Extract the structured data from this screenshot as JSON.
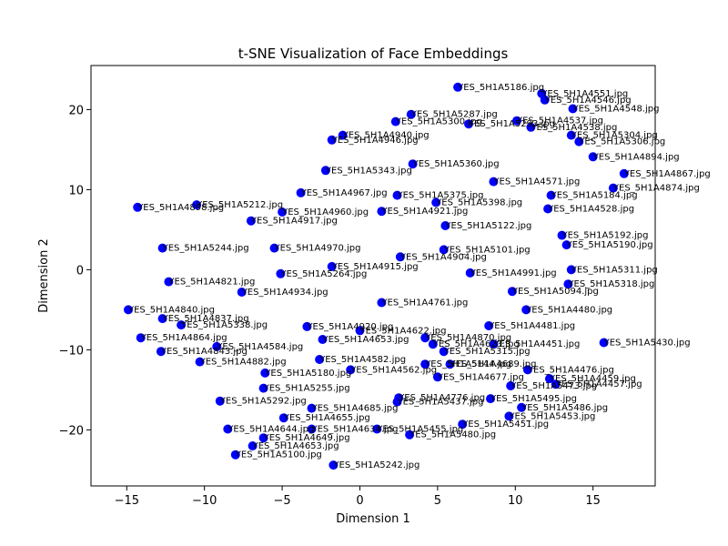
{
  "chart_data": {
    "type": "scatter",
    "title": "t-SNE Visualization of Face Embeddings",
    "xlabel": "Dimension 1",
    "ylabel": "Dimension 2",
    "xlim": [
      -17.3,
      19.0
    ],
    "ylim": [
      -27.0,
      25.5
    ],
    "xticks": [
      -15,
      -10,
      -5,
      0,
      5,
      10,
      15
    ],
    "yticks": [
      -20,
      -10,
      0,
      10,
      20
    ],
    "xtick_labels": [
      "−15",
      "−10",
      "−5",
      "0",
      "5",
      "10",
      "15"
    ],
    "ytick_labels": [
      "−20",
      "−10",
      "0",
      "10",
      "20"
    ],
    "grid": false,
    "point_color": "#0000ff",
    "points": [
      {
        "x": 6.3,
        "y": 22.8,
        "label": "YES_5H1A5186.jpg"
      },
      {
        "x": 11.7,
        "y": 22.0,
        "label": "YES_5H1A4551.jpg"
      },
      {
        "x": 11.9,
        "y": 21.2,
        "label": "YES_5H1A4546.jpg"
      },
      {
        "x": 13.7,
        "y": 20.1,
        "label": "YES_5H1A4548.jpg"
      },
      {
        "x": 3.3,
        "y": 19.4,
        "label": "YES_5H1A5287.jpg"
      },
      {
        "x": 2.3,
        "y": 18.5,
        "label": "YES_5H1A5300.jpg"
      },
      {
        "x": 10.1,
        "y": 18.6,
        "label": "YES_5H1A4537.jpg"
      },
      {
        "x": 7.0,
        "y": 18.2,
        "label": "YES_5H1A5293.jpg"
      },
      {
        "x": 11.0,
        "y": 17.8,
        "label": "YES_5H1A4538.jpg"
      },
      {
        "x": -1.1,
        "y": 16.8,
        "label": "YES_5H1A4940.jpg"
      },
      {
        "x": -1.8,
        "y": 16.2,
        "label": "YES_5H1A4946.jpg"
      },
      {
        "x": 14.1,
        "y": 16.0,
        "label": "YES_5H1A5306.jpg"
      },
      {
        "x": 13.6,
        "y": 16.8,
        "label": "YES_5H1A5304.jpg"
      },
      {
        "x": 3.4,
        "y": 13.2,
        "label": "YES_5H1A5360.jpg"
      },
      {
        "x": 15.0,
        "y": 14.1,
        "label": "YES_5H1A4894.jpg"
      },
      {
        "x": 17.0,
        "y": 12.0,
        "label": "YES_5H1A4867.jpg"
      },
      {
        "x": 16.3,
        "y": 10.2,
        "label": "YES_5H1A4874.jpg"
      },
      {
        "x": -2.2,
        "y": 12.4,
        "label": "YES_5H1A5343.jpg"
      },
      {
        "x": 8.6,
        "y": 11.0,
        "label": "YES_5H1A4571.jpg"
      },
      {
        "x": -3.8,
        "y": 9.6,
        "label": "YES_5H1A4967.jpg"
      },
      {
        "x": 2.4,
        "y": 9.3,
        "label": "YES_5H1A5375.jpg"
      },
      {
        "x": 12.3,
        "y": 9.3,
        "label": "YES_5H1A5184.jpg"
      },
      {
        "x": 4.9,
        "y": 8.4,
        "label": "YES_5H1A5398.jpg"
      },
      {
        "x": -5.0,
        "y": 7.2,
        "label": "YES_5H1A4960.jpg"
      },
      {
        "x": 1.4,
        "y": 7.3,
        "label": "YES_5H1A4921.jpg"
      },
      {
        "x": 12.1,
        "y": 7.6,
        "label": "YES_5H1A4528.jpg"
      },
      {
        "x": -14.3,
        "y": 7.8,
        "label": "YES_5H1A4898.jpg"
      },
      {
        "x": -10.5,
        "y": 8.1,
        "label": "YES_5H1A5212.jpg"
      },
      {
        "x": -7.0,
        "y": 6.1,
        "label": "YES_5H1A4917.jpg"
      },
      {
        "x": 5.5,
        "y": 5.5,
        "label": "YES_5H1A5122.jpg"
      },
      {
        "x": 13.0,
        "y": 4.3,
        "label": "YES_5H1A5192.jpg"
      },
      {
        "x": 13.3,
        "y": 3.1,
        "label": "YES_5H1A5190.jpg"
      },
      {
        "x": 5.4,
        "y": 2.5,
        "label": "YES_5H1A5101.jpg"
      },
      {
        "x": -12.7,
        "y": 2.7,
        "label": "YES_5H1A5244.jpg"
      },
      {
        "x": -5.5,
        "y": 2.7,
        "label": "YES_5H1A4970.jpg"
      },
      {
        "x": 2.6,
        "y": 1.6,
        "label": "YES_5H1A4904.jpg"
      },
      {
        "x": -1.8,
        "y": 0.4,
        "label": "YES_5H1A4915.jpg"
      },
      {
        "x": 13.6,
        "y": 0.0,
        "label": "YES_5H1A5311.jpg"
      },
      {
        "x": 13.4,
        "y": -1.8,
        "label": "YES_5H1A5318.jpg"
      },
      {
        "x": -5.1,
        "y": -0.5,
        "label": "YES_5H1A5264.jpg"
      },
      {
        "x": 7.1,
        "y": -0.4,
        "label": "YES_5H1A4991.jpg"
      },
      {
        "x": -12.3,
        "y": -1.5,
        "label": "YES_5H1A4821.jpg"
      },
      {
        "x": 9.8,
        "y": -2.7,
        "label": "YES_5H1A5094.jpg"
      },
      {
        "x": -7.6,
        "y": -2.8,
        "label": "YES_5H1A4934.jpg"
      },
      {
        "x": 1.4,
        "y": -4.1,
        "label": "YES_5H1A4761.jpg"
      },
      {
        "x": -14.9,
        "y": -5.0,
        "label": "YES_5H1A4840.jpg"
      },
      {
        "x": 10.7,
        "y": -5.0,
        "label": "YES_5H1A4480.jpg"
      },
      {
        "x": -12.7,
        "y": -6.1,
        "label": "YES_5H1A4837.jpg"
      },
      {
        "x": -3.4,
        "y": -7.1,
        "label": "YES_5H1A4920.jpg"
      },
      {
        "x": -11.5,
        "y": -6.9,
        "label": "YES_5H1A5338.jpg"
      },
      {
        "x": 0.0,
        "y": -7.6,
        "label": "YES_5H1A4622.jpg"
      },
      {
        "x": 8.3,
        "y": -7.0,
        "label": "YES_5H1A4481.jpg"
      },
      {
        "x": -14.1,
        "y": -8.5,
        "label": "YES_5H1A4864.jpg"
      },
      {
        "x": 4.2,
        "y": -8.5,
        "label": "YES_5H1A4870.jpg"
      },
      {
        "x": -2.4,
        "y": -8.7,
        "label": "YES_5H1A4653.jpg"
      },
      {
        "x": 4.7,
        "y": -9.3,
        "label": "YES_5H1A4623.jpg"
      },
      {
        "x": 8.6,
        "y": -9.3,
        "label": "YES_5H1A4451.jpg"
      },
      {
        "x": 15.7,
        "y": -9.1,
        "label": "YES_5H1A5430.jpg"
      },
      {
        "x": -9.2,
        "y": -9.6,
        "label": "YES_5H1A4584.jpg"
      },
      {
        "x": 5.4,
        "y": -10.2,
        "label": "YES_5H1A5315.jpg"
      },
      {
        "x": -12.8,
        "y": -10.2,
        "label": "YES_5H1A4843.jpg"
      },
      {
        "x": -2.6,
        "y": -11.2,
        "label": "YES_5H1A4582.jpg"
      },
      {
        "x": -10.3,
        "y": -11.5,
        "label": "YES_5H1A4882.jpg"
      },
      {
        "x": -0.6,
        "y": -12.5,
        "label": "YES_5H1A4562.jpg"
      },
      {
        "x": 4.2,
        "y": -11.8,
        "label": "YES_5H1A5144.jpg"
      },
      {
        "x": 5.8,
        "y": -11.8,
        "label": "YES_5H1A4689.jpg"
      },
      {
        "x": -6.1,
        "y": -12.9,
        "label": "YES_5H1A5180.jpg"
      },
      {
        "x": 10.8,
        "y": -12.5,
        "label": "YES_5H1A4476.jpg"
      },
      {
        "x": 5.0,
        "y": -13.4,
        "label": "YES_5H1A4677.jpg"
      },
      {
        "x": 12.6,
        "y": -14.3,
        "label": "YES_5H1A4457.jpg"
      },
      {
        "x": 12.2,
        "y": -13.6,
        "label": "YES_5H1A4459.jpg"
      },
      {
        "x": 9.7,
        "y": -14.5,
        "label": "YES_5H1A5473.jpg"
      },
      {
        "x": -6.2,
        "y": -14.8,
        "label": "YES_5H1A5255.jpg"
      },
      {
        "x": 2.5,
        "y": -16.0,
        "label": "YES_5H1A4776.jpg"
      },
      {
        "x": -9.0,
        "y": -16.4,
        "label": "YES_5H1A5292.jpg"
      },
      {
        "x": 2.4,
        "y": -16.5,
        "label": "YES_5H1A5437.jpg"
      },
      {
        "x": 8.4,
        "y": -16.1,
        "label": "YES_5H1A5495.jpg"
      },
      {
        "x": 10.4,
        "y": -17.2,
        "label": "YES_5H1A5486.jpg"
      },
      {
        "x": -3.1,
        "y": -17.3,
        "label": "YES_5H1A4685.jpg"
      },
      {
        "x": 9.6,
        "y": -18.3,
        "label": "YES_5H1A5453.jpg"
      },
      {
        "x": -4.9,
        "y": -18.5,
        "label": "YES_5H1A4655.jpg"
      },
      {
        "x": -8.5,
        "y": -19.9,
        "label": "YES_5H1A4644.jpg"
      },
      {
        "x": -3.1,
        "y": -19.9,
        "label": "YES_5H1A4634.jpg"
      },
      {
        "x": 1.1,
        "y": -19.9,
        "label": "YES_5H1A5455.jpg"
      },
      {
        "x": 6.6,
        "y": -19.3,
        "label": "YES_5H1A5451.jpg"
      },
      {
        "x": 3.2,
        "y": -20.6,
        "label": "YES_5H1A5480.jpg"
      },
      {
        "x": -6.2,
        "y": -21.0,
        "label": "YES_5H1A4649.jpg"
      },
      {
        "x": -6.9,
        "y": -22.0,
        "label": "YES_5H1A4653.jpg"
      },
      {
        "x": -8.0,
        "y": -23.1,
        "label": "YES_5H1A5100.jpg"
      },
      {
        "x": -1.7,
        "y": -24.4,
        "label": "YES_5H1A5242.jpg"
      }
    ]
  }
}
